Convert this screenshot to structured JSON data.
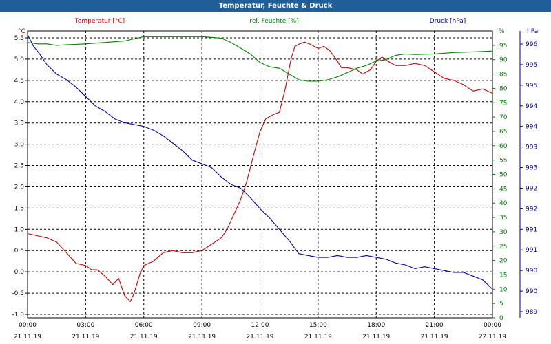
{
  "window": {
    "title": "Temperatur, Feuchte & Druck"
  },
  "chart_data": {
    "type": "line",
    "title": "Temperatur, Feuchte & Druck",
    "x_ticks": [
      {
        "time": "00:00",
        "date": "21.11.19"
      },
      {
        "time": "03:00",
        "date": "21.11.19"
      },
      {
        "time": "06:00",
        "date": "21.11.19"
      },
      {
        "time": "09:00",
        "date": "21.11.19"
      },
      {
        "time": "12:00",
        "date": "21.11.19"
      },
      {
        "time": "15:00",
        "date": "21.11.19"
      },
      {
        "time": "18:00",
        "date": "21.11.19"
      },
      {
        "time": "21:00",
        "date": "21.11.19"
      },
      {
        "time": "00:00",
        "date": "22.11.19"
      }
    ],
    "x_range_hours": [
      0,
      24
    ],
    "axes": {
      "temperature": {
        "label": "Temperatur [°C]",
        "unit": "°C",
        "color": "#cc0000",
        "range": [
          -1.0,
          5.7
        ],
        "ticks": [
          "5.5",
          "5.0",
          "4.5",
          "4.0",
          "3.5",
          "3.0",
          "2.5",
          "2.0",
          "1.5",
          "1.0",
          "0.5",
          "0.0",
          "-0.5",
          "-1.0"
        ]
      },
      "humidity": {
        "label": "rel. Feuchte [%]",
        "unit": "%",
        "color": "#008000",
        "range": [
          0,
          100
        ],
        "ticks": [
          "95",
          "90",
          "85",
          "80",
          "75",
          "70",
          "65",
          "60",
          "55",
          "50",
          "45",
          "40",
          "35",
          "30",
          "25",
          "20",
          "15",
          "10",
          "5",
          "0"
        ]
      },
      "pressure": {
        "label": "Druck [hPa]",
        "unit": "hPa",
        "color": "#000099",
        "range": [
          989,
          996.5
        ],
        "ticks": [
          "996",
          "995",
          "995",
          "994",
          "994",
          "993",
          "993",
          "992",
          "992",
          "991",
          "991",
          "990",
          "990",
          "989"
        ]
      }
    },
    "series": [
      {
        "name": "Temperatur",
        "axis": "temperature",
        "color": "#cc0000",
        "points": [
          [
            0,
            0.9
          ],
          [
            0.5,
            0.85
          ],
          [
            1,
            0.8
          ],
          [
            1.5,
            0.7
          ],
          [
            2,
            0.45
          ],
          [
            2.5,
            0.2
          ],
          [
            3,
            0.15
          ],
          [
            3.3,
            0.05
          ],
          [
            3.6,
            0.05
          ],
          [
            4,
            -0.1
          ],
          [
            4.4,
            -0.3
          ],
          [
            4.7,
            -0.15
          ],
          [
            5,
            -0.55
          ],
          [
            5.3,
            -0.7
          ],
          [
            5.5,
            -0.5
          ],
          [
            5.8,
            -0.05
          ],
          [
            6,
            0.15
          ],
          [
            6.5,
            0.25
          ],
          [
            7,
            0.45
          ],
          [
            7.5,
            0.5
          ],
          [
            8,
            0.45
          ],
          [
            8.5,
            0.45
          ],
          [
            9,
            0.5
          ],
          [
            9.5,
            0.65
          ],
          [
            10,
            0.8
          ],
          [
            10.3,
            1.0
          ],
          [
            10.7,
            1.4
          ],
          [
            11,
            1.7
          ],
          [
            11.3,
            2.1
          ],
          [
            11.7,
            2.8
          ],
          [
            12,
            3.3
          ],
          [
            12.3,
            3.6
          ],
          [
            12.7,
            3.7
          ],
          [
            13,
            3.75
          ],
          [
            13.3,
            4.3
          ],
          [
            13.6,
            5.0
          ],
          [
            13.8,
            5.3
          ],
          [
            14,
            5.35
          ],
          [
            14.3,
            5.4
          ],
          [
            14.6,
            5.35
          ],
          [
            15,
            5.25
          ],
          [
            15.3,
            5.3
          ],
          [
            15.6,
            5.2
          ],
          [
            16,
            4.95
          ],
          [
            16.2,
            4.8
          ],
          [
            16.5,
            4.8
          ],
          [
            17,
            4.75
          ],
          [
            17.3,
            4.65
          ],
          [
            17.7,
            4.75
          ],
          [
            18,
            4.95
          ],
          [
            18.3,
            5.05
          ],
          [
            18.6,
            4.95
          ],
          [
            19,
            4.85
          ],
          [
            19.5,
            4.85
          ],
          [
            20,
            4.9
          ],
          [
            20.5,
            4.85
          ],
          [
            21,
            4.7
          ],
          [
            21.5,
            4.55
          ],
          [
            22,
            4.5
          ],
          [
            22.5,
            4.4
          ],
          [
            23,
            4.25
          ],
          [
            23.5,
            4.3
          ],
          [
            24,
            4.2
          ]
        ]
      },
      {
        "name": "rel. Feuchte",
        "axis": "humidity",
        "color": "#008000",
        "points": [
          [
            0,
            96
          ],
          [
            0.5,
            95.5
          ],
          [
            1,
            95.5
          ],
          [
            1.5,
            95
          ],
          [
            2,
            95.2
          ],
          [
            3,
            95.5
          ],
          [
            4,
            96
          ],
          [
            5,
            96.5
          ],
          [
            6,
            98
          ],
          [
            7,
            98
          ],
          [
            8,
            98
          ],
          [
            9,
            98
          ],
          [
            10,
            97.5
          ],
          [
            10.5,
            96
          ],
          [
            11,
            94
          ],
          [
            11.5,
            92
          ],
          [
            12,
            89
          ],
          [
            12.5,
            87.5
          ],
          [
            13,
            87
          ],
          [
            13.5,
            85
          ],
          [
            14,
            83
          ],
          [
            14.5,
            82.5
          ],
          [
            15,
            82.5
          ],
          [
            15.5,
            83
          ],
          [
            16,
            84
          ],
          [
            16.5,
            85.5
          ],
          [
            17,
            87
          ],
          [
            17.5,
            88
          ],
          [
            18,
            89.5
          ],
          [
            18.5,
            90
          ],
          [
            19,
            91.5
          ],
          [
            19.5,
            92
          ],
          [
            20,
            91.8
          ],
          [
            21,
            92
          ],
          [
            22,
            92.5
          ],
          [
            23,
            92.7
          ],
          [
            24,
            93
          ]
        ]
      },
      {
        "name": "Druck",
        "axis": "pressure",
        "color": "#000099",
        "points": [
          [
            0,
            996.4
          ],
          [
            0.3,
            996.1
          ],
          [
            0.6,
            995.9
          ],
          [
            1,
            995.6
          ],
          [
            1.5,
            995.35
          ],
          [
            2,
            995.2
          ],
          [
            2.5,
            995
          ],
          [
            3,
            994.75
          ],
          [
            3.5,
            994.5
          ],
          [
            4,
            994.35
          ],
          [
            4.5,
            994.15
          ],
          [
            5,
            994.05
          ],
          [
            5.5,
            994
          ],
          [
            6,
            993.95
          ],
          [
            6.5,
            993.85
          ],
          [
            7,
            993.7
          ],
          [
            7.5,
            993.5
          ],
          [
            8,
            993.3
          ],
          [
            8.5,
            993.05
          ],
          [
            9,
            992.95
          ],
          [
            9.5,
            992.85
          ],
          [
            10,
            992.6
          ],
          [
            10.5,
            992.4
          ],
          [
            11,
            992.3
          ],
          [
            11.5,
            992.05
          ],
          [
            12,
            991.75
          ],
          [
            12.5,
            991.5
          ],
          [
            13,
            991.2
          ],
          [
            13.5,
            990.9
          ],
          [
            14,
            990.55
          ],
          [
            14.5,
            990.5
          ],
          [
            15,
            990.45
          ],
          [
            15.5,
            990.45
          ],
          [
            16,
            990.5
          ],
          [
            16.5,
            990.45
          ],
          [
            17,
            990.45
          ],
          [
            17.5,
            990.5
          ],
          [
            18,
            990.45
          ],
          [
            18.5,
            990.4
          ],
          [
            19,
            990.3
          ],
          [
            19.5,
            990.25
          ],
          [
            20,
            990.15
          ],
          [
            20.5,
            990.2
          ],
          [
            21,
            990.15
          ],
          [
            21.5,
            990.1
          ],
          [
            22,
            990.05
          ],
          [
            22.5,
            990.05
          ],
          [
            23,
            989.95
          ],
          [
            23.5,
            989.85
          ],
          [
            24,
            989.6
          ]
        ]
      }
    ],
    "grid": true,
    "legend": "top"
  }
}
